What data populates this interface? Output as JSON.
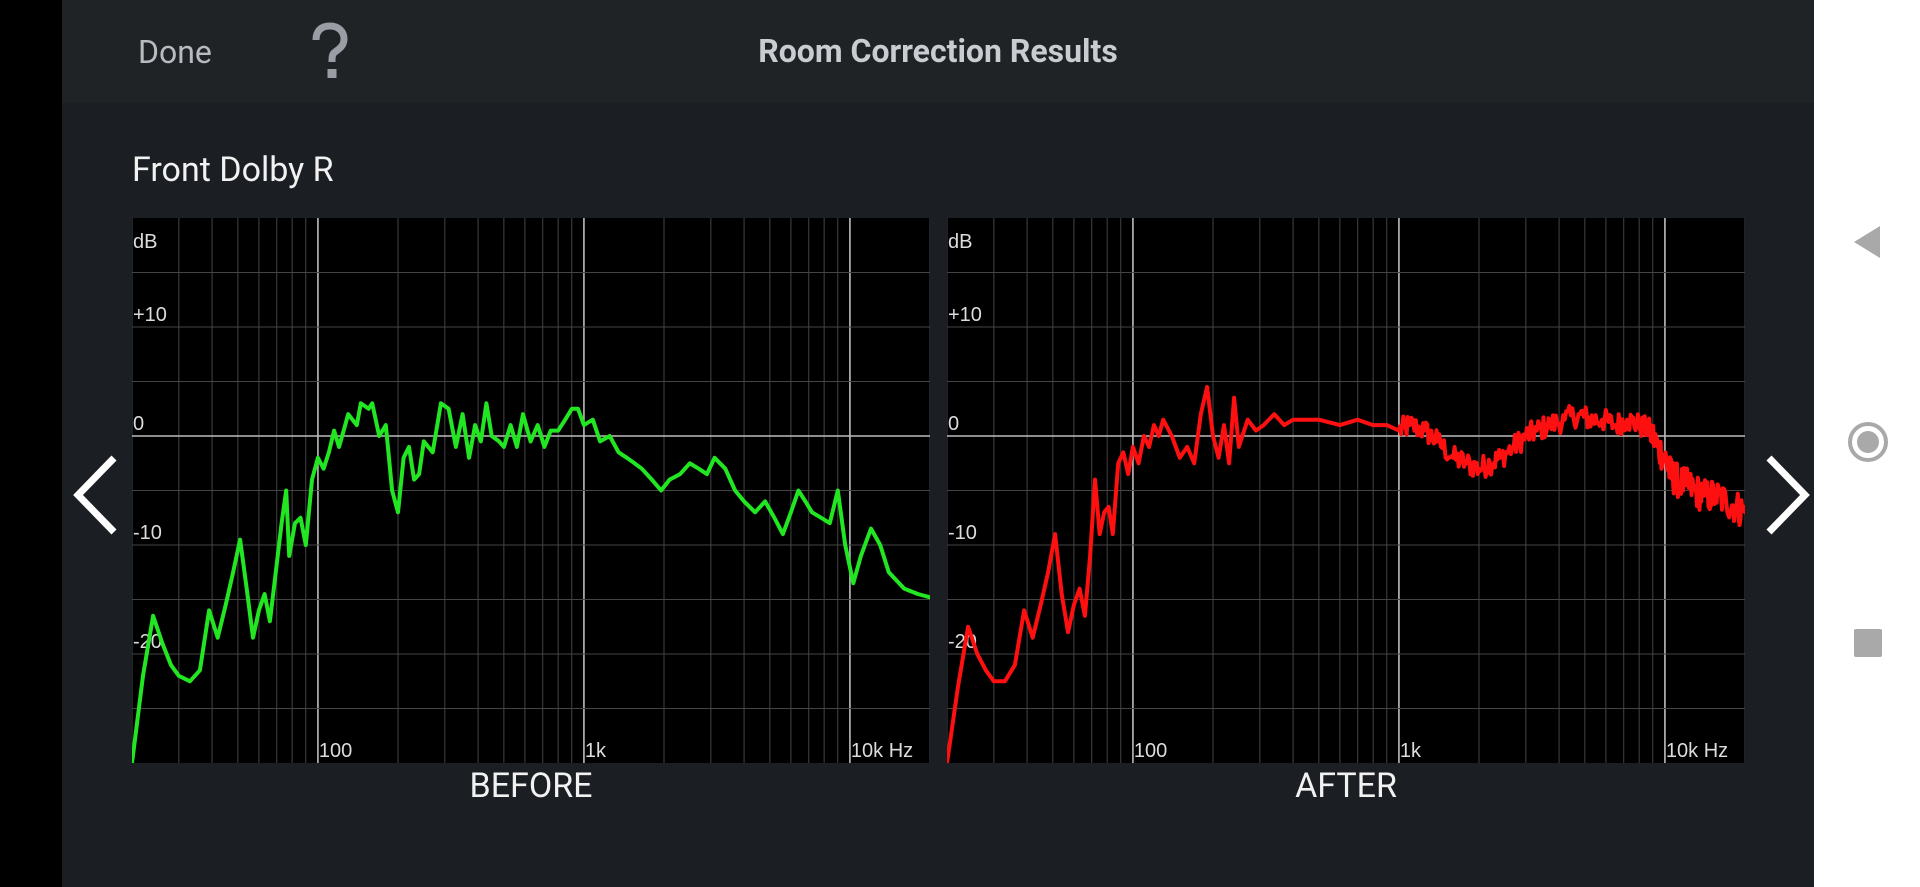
{
  "header": {
    "done_label": "Done",
    "help_icon": "question-mark-icon",
    "title": "Room Correction Results"
  },
  "channel": {
    "name": "Front Dolby R"
  },
  "navigation": {
    "prev_icon": "chevron-left-icon",
    "next_icon": "chevron-right-icon"
  },
  "system_nav": {
    "back_icon": "triangle-back-icon",
    "home_icon": "circle-home-icon",
    "recents_icon": "square-recents-icon"
  },
  "colors": {
    "before": "#22e622",
    "after": "#ff1010",
    "grid": "#444444",
    "grid_major": "#bdbdbd"
  },
  "chart_data": [
    {
      "type": "line",
      "title": "BEFORE",
      "xlabel": "Hz",
      "ylabel": "dB",
      "x_scale": "log",
      "xlim": [
        20,
        20000
      ],
      "ylim": [
        -30,
        20
      ],
      "x_ticks": [
        {
          "value": 100,
          "label": "100"
        },
        {
          "value": 1000,
          "label": "1k"
        },
        {
          "value": 10000,
          "label": "10k Hz"
        }
      ],
      "y_ticks": [
        {
          "value": 10,
          "label": "+10"
        },
        {
          "value": 0,
          "label": "0"
        },
        {
          "value": -10,
          "label": "-10"
        },
        {
          "value": -20,
          "label": "-20"
        }
      ],
      "y_unit_label": "dB",
      "color": "#22e622",
      "series": [
        {
          "points": [
            [
              20,
              -30
            ],
            [
              22,
              -22
            ],
            [
              24,
              -16.5
            ],
            [
              26,
              -19
            ],
            [
              28,
              -21
            ],
            [
              30,
              -22
            ],
            [
              33,
              -22.5
            ],
            [
              36,
              -21.5
            ],
            [
              39,
              -16
            ],
            [
              42,
              -18.5
            ],
            [
              45,
              -15.5
            ],
            [
              48,
              -12.5
            ],
            [
              51,
              -9.5
            ],
            [
              54,
              -14
            ],
            [
              57,
              -18.5
            ],
            [
              60,
              -16
            ],
            [
              63,
              -14.5
            ],
            [
              66,
              -17
            ],
            [
              69,
              -13
            ],
            [
              73,
              -8
            ],
            [
              76,
              -5
            ],
            [
              78,
              -11
            ],
            [
              82,
              -8
            ],
            [
              86,
              -7.5
            ],
            [
              90,
              -10
            ],
            [
              95,
              -4
            ],
            [
              100,
              -2
            ],
            [
              105,
              -3
            ],
            [
              110,
              -1.5
            ],
            [
              115,
              0.5
            ],
            [
              120,
              -1
            ],
            [
              125,
              0.5
            ],
            [
              130,
              2
            ],
            [
              140,
              1
            ],
            [
              145,
              3
            ],
            [
              155,
              2.5
            ],
            [
              160,
              3
            ],
            [
              170,
              0
            ],
            [
              180,
              1
            ],
            [
              190,
              -5
            ],
            [
              200,
              -7
            ],
            [
              210,
              -2
            ],
            [
              220,
              -1
            ],
            [
              230,
              -4
            ],
            [
              240,
              -3.5
            ],
            [
              250,
              -0.5
            ],
            [
              270,
              -1.5
            ],
            [
              290,
              3
            ],
            [
              310,
              2.5
            ],
            [
              330,
              -1
            ],
            [
              350,
              2
            ],
            [
              370,
              -2
            ],
            [
              390,
              1
            ],
            [
              410,
              -0.5
            ],
            [
              430,
              3
            ],
            [
              450,
              0
            ],
            [
              480,
              -0.5
            ],
            [
              500,
              -1
            ],
            [
              530,
              1
            ],
            [
              560,
              -1
            ],
            [
              590,
              2
            ],
            [
              630,
              -0.5
            ],
            [
              670,
              1
            ],
            [
              710,
              -1
            ],
            [
              750,
              0.5
            ],
            [
              800,
              0.5
            ],
            [
              850,
              1.5
            ],
            [
              900,
              2.5
            ],
            [
              950,
              2.5
            ],
            [
              1000,
              1
            ],
            [
              1080,
              1.5
            ],
            [
              1150,
              -0.5
            ],
            [
              1250,
              0
            ],
            [
              1350,
              -1.5
            ],
            [
              1450,
              -2
            ],
            [
              1550,
              -2.5
            ],
            [
              1650,
              -3
            ],
            [
              1800,
              -4
            ],
            [
              1950,
              -5
            ],
            [
              2100,
              -4
            ],
            [
              2300,
              -3.5
            ],
            [
              2500,
              -2.5
            ],
            [
              2700,
              -3
            ],
            [
              2900,
              -3.5
            ],
            [
              3100,
              -2
            ],
            [
              3400,
              -3
            ],
            [
              3700,
              -5
            ],
            [
              4000,
              -6
            ],
            [
              4400,
              -7
            ],
            [
              4800,
              -6
            ],
            [
              5200,
              -7.5
            ],
            [
              5600,
              -9
            ],
            [
              6000,
              -7
            ],
            [
              6400,
              -5
            ],
            [
              6800,
              -6
            ],
            [
              7200,
              -7
            ],
            [
              7800,
              -7.5
            ],
            [
              8400,
              -8
            ],
            [
              9000,
              -5
            ],
            [
              9600,
              -10
            ],
            [
              10300,
              -13.5
            ],
            [
              11000,
              -11
            ],
            [
              12000,
              -8.5
            ],
            [
              13000,
              -10
            ],
            [
              14000,
              -12.5
            ],
            [
              16000,
              -14
            ],
            [
              18000,
              -14.5
            ],
            [
              20000,
              -14.8
            ]
          ]
        }
      ]
    },
    {
      "type": "line",
      "title": "AFTER",
      "xlabel": "Hz",
      "ylabel": "dB",
      "x_scale": "log",
      "xlim": [
        20,
        20000
      ],
      "ylim": [
        -30,
        20
      ],
      "x_ticks": [
        {
          "value": 100,
          "label": "100"
        },
        {
          "value": 1000,
          "label": "1k"
        },
        {
          "value": 10000,
          "label": "10k Hz"
        }
      ],
      "y_ticks": [
        {
          "value": 10,
          "label": "+10"
        },
        {
          "value": 0,
          "label": "0"
        },
        {
          "value": -10,
          "label": "-10"
        },
        {
          "value": -20,
          "label": "-20"
        }
      ],
      "y_unit_label": "dB",
      "color": "#ff1010",
      "series": [
        {
          "points": [
            [
              20,
              -30
            ],
            [
              22,
              -23
            ],
            [
              24,
              -17.5
            ],
            [
              26,
              -20
            ],
            [
              28,
              -21.5
            ],
            [
              30,
              -22.5
            ],
            [
              33,
              -22.5
            ],
            [
              36,
              -21
            ],
            [
              39,
              -16
            ],
            [
              42,
              -18.5
            ],
            [
              45,
              -15.5
            ],
            [
              48,
              -12.5
            ],
            [
              51,
              -9
            ],
            [
              54,
              -14.5
            ],
            [
              57,
              -18
            ],
            [
              60,
              -15.5
            ],
            [
              63,
              -14
            ],
            [
              66,
              -16.5
            ],
            [
              69,
              -11
            ],
            [
              72,
              -4
            ],
            [
              75,
              -9
            ],
            [
              78,
              -7
            ],
            [
              81,
              -6.5
            ],
            [
              84,
              -9
            ],
            [
              88,
              -2.5
            ],
            [
              92,
              -1.5
            ],
            [
              96,
              -3.5
            ],
            [
              100,
              -1
            ],
            [
              105,
              -2.5
            ],
            [
              110,
              0
            ],
            [
              115,
              -1
            ],
            [
              120,
              1
            ],
            [
              125,
              0
            ],
            [
              130,
              1.5
            ],
            [
              140,
              0
            ],
            [
              150,
              -2
            ],
            [
              160,
              -1
            ],
            [
              170,
              -2.5
            ],
            [
              180,
              2
            ],
            [
              190,
              4.5
            ],
            [
              200,
              0
            ],
            [
              210,
              -2
            ],
            [
              220,
              1
            ],
            [
              230,
              -2.5
            ],
            [
              240,
              3.5
            ],
            [
              250,
              -1
            ],
            [
              270,
              1.5
            ],
            [
              290,
              0.5
            ],
            [
              310,
              1
            ],
            [
              340,
              2
            ],
            [
              370,
              1
            ],
            [
              400,
              1.5
            ],
            [
              450,
              1.5
            ],
            [
              500,
              1.5
            ],
            [
              600,
              1
            ],
            [
              700,
              1.5
            ],
            [
              800,
              1
            ],
            [
              900,
              1
            ],
            [
              1000,
              0.5
            ],
            [
              1100,
              1
            ],
            [
              1250,
              0.5
            ],
            [
              1400,
              -0.5
            ],
            [
              1600,
              -2
            ],
            [
              1800,
              -2.5
            ],
            [
              2000,
              -3
            ],
            [
              2200,
              -2.5
            ],
            [
              2400,
              -2
            ],
            [
              2700,
              -1
            ],
            [
              3000,
              0
            ],
            [
              3300,
              0.5
            ],
            [
              3700,
              1
            ],
            [
              4200,
              1.5
            ],
            [
              4800,
              2
            ],
            [
              5200,
              1.5
            ],
            [
              5800,
              1.5
            ],
            [
              6500,
              1
            ],
            [
              7200,
              1.5
            ],
            [
              8000,
              1
            ],
            [
              8800,
              0.5
            ],
            [
              9400,
              -1
            ],
            [
              10000,
              -2
            ],
            [
              10500,
              -3.5
            ],
            [
              11000,
              -4
            ],
            [
              12000,
              -4.5
            ],
            [
              13000,
              -5
            ],
            [
              14000,
              -5.5
            ],
            [
              15500,
              -5.5
            ],
            [
              17000,
              -6
            ],
            [
              18500,
              -6.5
            ],
            [
              20000,
              -7
            ]
          ],
          "noise_band_hz": [
            1000,
            20000
          ]
        }
      ]
    }
  ]
}
